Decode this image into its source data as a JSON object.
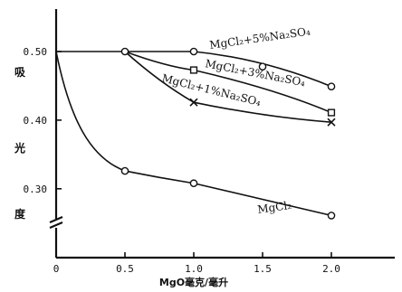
{
  "chart_data": {
    "type": "line",
    "xlabel": "MgO毫克/毫升",
    "ylabel_chars": [
      "吸",
      "光",
      "度"
    ],
    "x_ticks": [
      {
        "value": 0,
        "label": "0"
      },
      {
        "value": 0.5,
        "label": "0.5"
      },
      {
        "value": 1.0,
        "label": "1.0"
      },
      {
        "value": 1.5,
        "label": "1.5"
      },
      {
        "value": 2.0,
        "label": "2.0"
      }
    ],
    "y_ticks": [
      {
        "value": 0.5,
        "label": "0.50"
      },
      {
        "value": 0.4,
        "label": "0.40"
      },
      {
        "value": 0.3,
        "label": "0.30"
      }
    ],
    "xlim": [
      0,
      2.5
    ],
    "ylim": [
      0.24,
      0.56
    ],
    "axis_break": "y",
    "series": [
      {
        "name": "MgCl₂+5%Na₂SO₄",
        "marker": "circle",
        "x": [
          0,
          0.5,
          1.0,
          1.5,
          2.0
        ],
        "y": [
          0.5,
          0.5,
          0.5,
          0.478,
          0.449
        ]
      },
      {
        "name": "MgCl₂+3%Na₂SO₄",
        "marker": "square",
        "x": [
          0.5,
          1.0,
          2.0
        ],
        "y": [
          0.5,
          0.473,
          0.411
        ]
      },
      {
        "name": "MgCl₂+1%Na₂SO₄",
        "marker": "cross",
        "x": [
          0.5,
          1.0,
          2.0
        ],
        "y": [
          0.5,
          0.426,
          0.397
        ]
      },
      {
        "name": "MgCl₂",
        "marker": "circle",
        "x": [
          0,
          0.5,
          1.0,
          2.0
        ],
        "y": [
          0.5,
          0.326,
          0.308,
          0.261
        ]
      }
    ]
  }
}
